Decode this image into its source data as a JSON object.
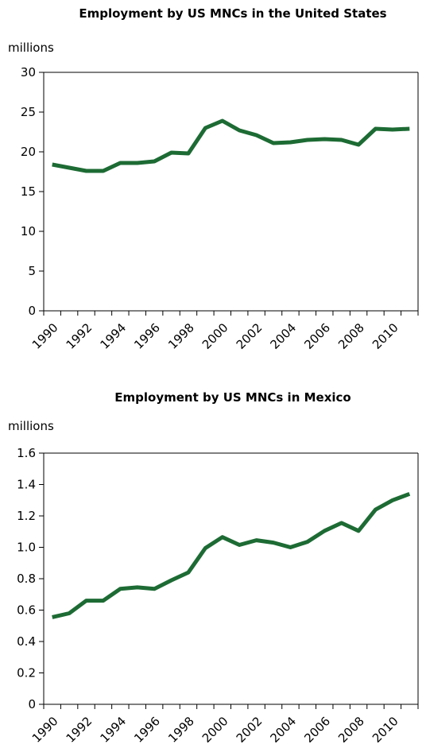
{
  "chart_data": [
    {
      "type": "line",
      "title": "Employment by US MNCs in the United States",
      "ylabel": "millions",
      "xlabel": "",
      "ylim": [
        0,
        30
      ],
      "yticks": [
        "0",
        "5",
        "10",
        "15",
        "20",
        "25",
        "30"
      ],
      "xticks": [
        "1990",
        "1992",
        "1994",
        "1996",
        "1998",
        "2000",
        "2002",
        "2004",
        "2006",
        "2008",
        "2010"
      ],
      "x": [
        1990,
        1991,
        1992,
        1993,
        1994,
        1995,
        1996,
        1997,
        1998,
        1999,
        2000,
        2001,
        2002,
        2003,
        2004,
        2005,
        2006,
        2007,
        2008,
        2009,
        2010,
        2011
      ],
      "series": [
        {
          "values": [
            18.4,
            18.0,
            17.6,
            17.6,
            18.6,
            18.6,
            18.8,
            19.9,
            19.8,
            23.0,
            23.9,
            22.7,
            22.1,
            21.1,
            21.2,
            21.5,
            21.6,
            21.5,
            20.9,
            22.9,
            22.8,
            22.9
          ]
        }
      ],
      "line_color": "#1d6b34",
      "grid": false,
      "legend": "none"
    },
    {
      "type": "line",
      "title": "Employment by US MNCs in Mexico",
      "ylabel": "millions",
      "xlabel": "",
      "ylim": [
        0,
        1.6
      ],
      "yticks": [
        "0",
        "0.2",
        "0.4",
        "0.6",
        "0.8",
        "1.0",
        "1.2",
        "1.4",
        "1.6"
      ],
      "xticks": [
        "1990",
        "1992",
        "1994",
        "1996",
        "1998",
        "2000",
        "2002",
        "2004",
        "2006",
        "2008",
        "2010"
      ],
      "x": [
        1990,
        1991,
        1992,
        1993,
        1994,
        1995,
        1996,
        1997,
        1998,
        1999,
        2000,
        2001,
        2002,
        2003,
        2004,
        2005,
        2006,
        2007,
        2008,
        2009,
        2010,
        2011
      ],
      "series": [
        {
          "values": [
            0.555,
            0.58,
            0.66,
            0.66,
            0.735,
            0.745,
            0.735,
            0.79,
            0.84,
            0.995,
            1.065,
            1.015,
            1.045,
            1.03,
            1.0,
            1.035,
            1.105,
            1.155,
            1.105,
            1.24,
            1.3,
            1.34
          ]
        }
      ],
      "line_color": "#1d6b34",
      "grid": false,
      "legend": "none"
    }
  ]
}
